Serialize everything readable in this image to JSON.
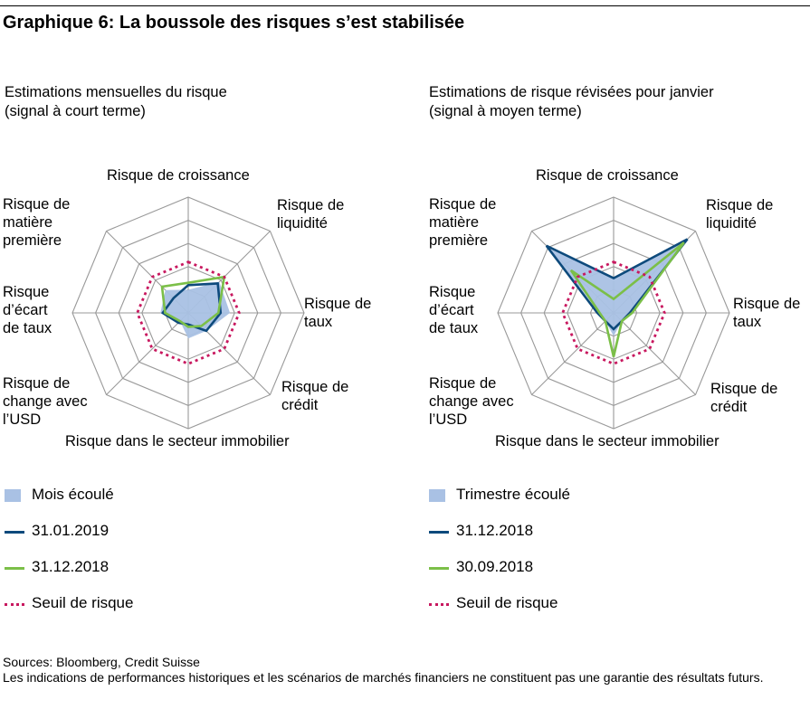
{
  "title": "Graphique 6: La boussole des risques s’est stabilisée",
  "colors": {
    "shade": "#a9c1e4",
    "navy": "#0d4a7c",
    "green": "#7bbf48",
    "threshold": "#c8185f",
    "grid": "#999999"
  },
  "chart_data": [
    {
      "type": "radar",
      "subtitle": [
        "Estimations mensuelles du risque",
        "(signal à court terme)"
      ],
      "axes": [
        "Risque de croissance",
        "Risque de liquidité",
        "Risque de taux",
        "Risque de crédit",
        "Risque dans le secteur immobilier",
        "Risque de change avec l’USD",
        "Risque d’écart de taux",
        "Risque de matière première"
      ],
      "rlim": [
        0,
        5
      ],
      "series": [
        {
          "name": "Mois écoulé",
          "kind": "area",
          "values": [
            1.0,
            1.9,
            1.8,
            1.1,
            1.1,
            0.5,
            1.2,
            1.4
          ]
        },
        {
          "name": "31.01.2019",
          "kind": "line",
          "values": [
            1.2,
            1.8,
            1.4,
            1.1,
            0.5,
            0.6,
            1.1,
            0.9
          ]
        },
        {
          "name": "31.12.2018",
          "kind": "line",
          "values": [
            1.3,
            2.2,
            1.3,
            0.8,
            0.6,
            0.5,
            1.0,
            1.6
          ]
        },
        {
          "name": "Seuil de risque",
          "kind": "dotted",
          "values": [
            2.2,
            2.2,
            2.2,
            2.2,
            2.2,
            2.2,
            2.2,
            2.2
          ]
        }
      ],
      "legend": [
        {
          "label": "Mois écoulé",
          "style": "area"
        },
        {
          "label": "31.01.2019",
          "style": "navy"
        },
        {
          "label": "31.12.2018",
          "style": "green"
        },
        {
          "label": "Seuil de risque",
          "style": "dotted"
        }
      ]
    },
    {
      "type": "radar",
      "subtitle": [
        "Estimations de risque révisées pour janvier",
        "(signal à moyen terme)"
      ],
      "axes": [
        "Risque de croissance",
        "Risque de liquidité",
        "Risque de taux",
        "Risque de crédit",
        "Risque dans le secteur immobilier",
        "Risque de change avec l’USD",
        "Risque d’écart de taux",
        "Risque de matière première"
      ],
      "rlim": [
        0,
        5
      ],
      "series": [
        {
          "name": "Trimestre écoulé",
          "kind": "area",
          "values": [
            1.5,
            4.4,
            0.8,
            0.5,
            1.0,
            0.5,
            0.6,
            3.9
          ]
        },
        {
          "name": "31.12.2018",
          "kind": "line",
          "values": [
            1.5,
            4.5,
            0.7,
            0.5,
            0.7,
            0.5,
            0.7,
            4.1
          ]
        },
        {
          "name": "30.09.2018",
          "kind": "line",
          "values": [
            0.6,
            4.3,
            0.8,
            0.5,
            1.9,
            0.5,
            0.6,
            2.6
          ]
        },
        {
          "name": "Seuil de risque",
          "kind": "dotted",
          "values": [
            2.2,
            2.2,
            2.2,
            2.2,
            2.2,
            2.2,
            2.2,
            2.2
          ]
        }
      ],
      "legend": [
        {
          "label": "Trimestre écoulé",
          "style": "area"
        },
        {
          "label": "31.12.2018",
          "style": "navy"
        },
        {
          "label": "30.09.2018",
          "style": "green"
        },
        {
          "label": "Seuil de risque",
          "style": "dotted"
        }
      ]
    }
  ],
  "labels": {
    "growth": "Risque de croissance",
    "liquidity": "Risque de\nliquidité",
    "rates": "Risque de\ntaux",
    "credit": "Risque de\ncrédit",
    "realestate": "Risque dans le secteur immobilier",
    "fx": "Risque de\nchange avec\nl’USD",
    "spread": "Risque\nd’écart\nde taux",
    "commodity": "Risque de\nmatière\npremière"
  },
  "sources": "Sources: Bloomberg, Credit Suisse",
  "disclaimer": "Les indications de performances historiques et les scénarios de marchés financiers ne constituent pas une garantie des résultats futurs."
}
